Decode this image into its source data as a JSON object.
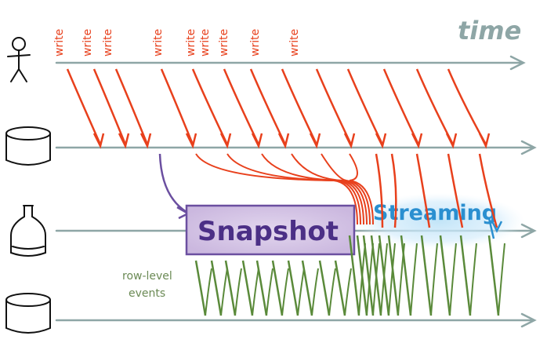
{
  "labels": {
    "time": "time",
    "write": "write",
    "snapshot": "Snapshot",
    "streaming": "Streaming",
    "events_line1": "row-level",
    "events_line2": "events"
  },
  "actors": [
    {
      "name": "user-icon"
    },
    {
      "name": "database-icon"
    },
    {
      "name": "bottle-icon"
    },
    {
      "name": "database-icon"
    }
  ],
  "colors": {
    "timeline": "#8ea6a6",
    "write_arrow": "#e8401c",
    "snapshot_border": "#6b4fa0",
    "snapshot_fill": "#e6dcef",
    "snapshot_text": "#4b2f86",
    "streaming_text": "#2a8fd0",
    "streaming_glow": "#bfe3f7",
    "event_stroke": "#5a8a3a",
    "event_text": "#6b8a55"
  }
}
